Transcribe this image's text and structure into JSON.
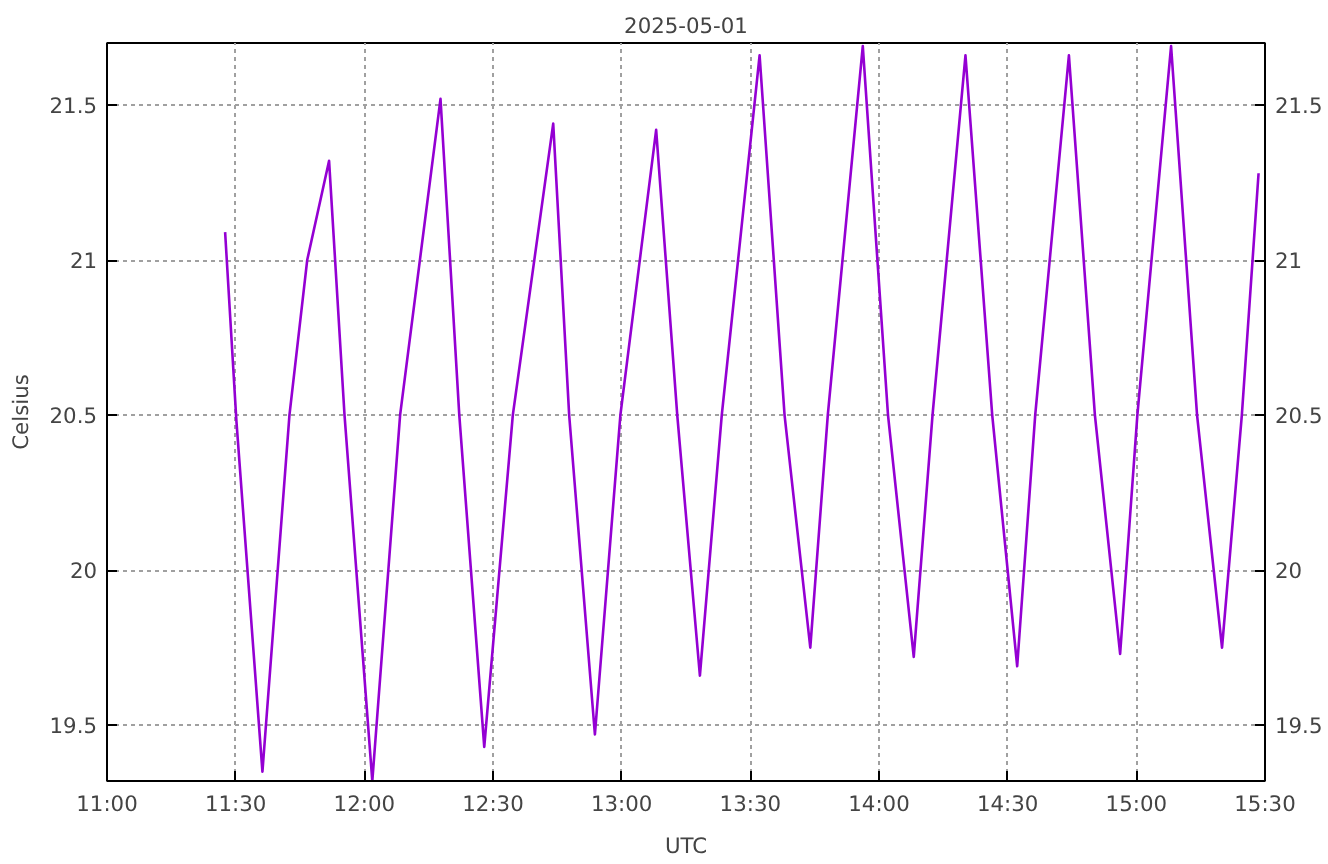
{
  "chart_data": {
    "type": "line",
    "title": "2025-05-01",
    "xlabel": "UTC",
    "ylabel": "Celsius",
    "x": [
      11.459,
      11.503,
      11.604,
      11.709,
      11.778,
      11.863,
      11.923,
      12.031,
      12.139,
      12.296,
      12.369,
      12.466,
      12.577,
      12.734,
      12.796,
      12.896,
      12.995,
      13.134,
      13.216,
      13.304,
      13.389,
      13.536,
      13.633,
      13.733,
      13.801,
      13.937,
      14.035,
      14.135,
      14.208,
      14.336,
      14.44,
      14.537,
      14.607,
      14.738,
      14.839,
      14.937,
      15.004,
      15.135,
      15.236,
      15.333,
      15.41,
      15.475
    ],
    "series": [
      {
        "color": "#9400d3",
        "values": [
          21.09,
          20.48,
          19.35,
          20.5,
          21.0,
          21.32,
          20.5,
          19.32,
          20.5,
          21.52,
          20.5,
          19.43,
          20.5,
          21.44,
          20.5,
          19.47,
          20.5,
          21.42,
          20.5,
          19.66,
          20.5,
          21.66,
          20.5,
          19.75,
          20.5,
          21.69,
          20.5,
          19.72,
          20.5,
          21.66,
          20.5,
          19.69,
          20.5,
          21.66,
          20.5,
          19.73,
          20.5,
          21.69,
          20.5,
          19.75,
          20.5,
          21.28
        ]
      }
    ],
    "xlim": [
      11,
      15.5
    ],
    "xticks": [
      {
        "value": 11,
        "label": "11:00"
      },
      {
        "value": 11.5,
        "label": "11:30"
      },
      {
        "value": 12,
        "label": "12:00"
      },
      {
        "value": 12.5,
        "label": "12:30"
      },
      {
        "value": 13,
        "label": "13:00"
      },
      {
        "value": 13.5,
        "label": "13:30"
      },
      {
        "value": 14,
        "label": "14:00"
      },
      {
        "value": 14.5,
        "label": "14:30"
      },
      {
        "value": 15,
        "label": "15:00"
      },
      {
        "value": 15.5,
        "label": "15:30"
      }
    ],
    "ylim": [
      19.32,
      21.7
    ],
    "yticks": [
      19.5,
      20,
      20.5,
      21,
      21.5
    ],
    "y2lim": [
      19.32,
      21.7
    ],
    "y2ticks": [
      19.5,
      20,
      20.5,
      21,
      21.5
    ],
    "grid": true,
    "marker": "none",
    "line_style": "solid"
  }
}
